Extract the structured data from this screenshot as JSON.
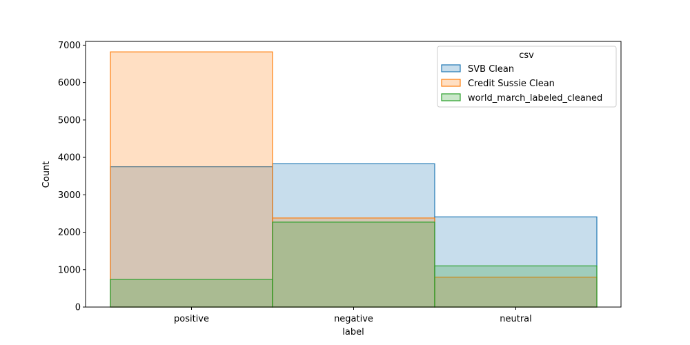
{
  "chart_data": {
    "type": "bar",
    "categories": [
      "positive",
      "negative",
      "neutral"
    ],
    "xlabel": "label",
    "ylabel": "Count",
    "ylim": [
      0,
      7100
    ],
    "yticks": [
      0,
      1000,
      2000,
      3000,
      4000,
      5000,
      6000,
      7000
    ],
    "grid": false,
    "legend": {
      "title": "csv",
      "position": "top-right"
    },
    "series": [
      {
        "name": "SVB Clean",
        "color": "#1f77b4",
        "values": [
          3750,
          3830,
          2410
        ]
      },
      {
        "name": "Credit Sussie Clean",
        "color": "#ff7f0e",
        "values": [
          6820,
          2380,
          800
        ]
      },
      {
        "name": "world_march_labeled_cleaned",
        "color": "#2ca02c",
        "values": [
          740,
          2270,
          1100
        ]
      }
    ]
  }
}
